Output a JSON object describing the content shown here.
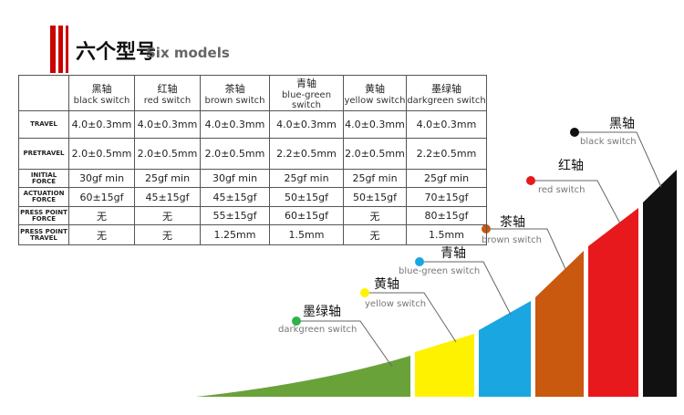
{
  "header": {
    "title": "六个型号",
    "subtitle": "Six models"
  },
  "table": {
    "columns": [
      {
        "cn": "黑轴",
        "en": "black switch"
      },
      {
        "cn": "红轴",
        "en": "red switch"
      },
      {
        "cn": "茶轴",
        "en": "brown switch"
      },
      {
        "cn": "青轴",
        "en": "blue-green switch"
      },
      {
        "cn": "黄轴",
        "en": "yellow switch"
      },
      {
        "cn": "墨绿轴",
        "en": "darkgreen switch"
      }
    ],
    "rows": [
      {
        "label": "TRAVEL",
        "cells": [
          "4.0±0.3mm",
          "4.0±0.3mm",
          "4.0±0.3mm",
          "4.0±0.3mm",
          "4.0±0.3mm",
          "4.0±0.3mm"
        ]
      },
      {
        "label": "PRETRAVEL",
        "cells": [
          "2.0±0.5mm",
          "2.0±0.5mm",
          "2.0±0.5mm",
          "2.2±0.5mm",
          "2.0±0.5mm",
          "2.2±0.5mm"
        ]
      },
      {
        "label": "INITIAL FORCE",
        "cells": [
          "30gf min",
          "25gf min",
          "30gf min",
          "25gf min",
          "25gf min",
          "25gf min"
        ]
      },
      {
        "label": "ACTUATION FORCE",
        "cells": [
          "60±15gf",
          "45±15gf",
          "45±15gf",
          "50±15gf",
          "50±15gf",
          "70±15gf"
        ]
      },
      {
        "label": "PRESS POINT FORCE",
        "cells": [
          "无",
          "无",
          "55±15gf",
          "60±15gf",
          "无",
          "80±15gf"
        ]
      },
      {
        "label": "PRESS POINT TRAVEL",
        "cells": [
          "无",
          "无",
          "1.25mm",
          "1.5mm",
          "无",
          "1.5mm"
        ]
      }
    ]
  }
}
